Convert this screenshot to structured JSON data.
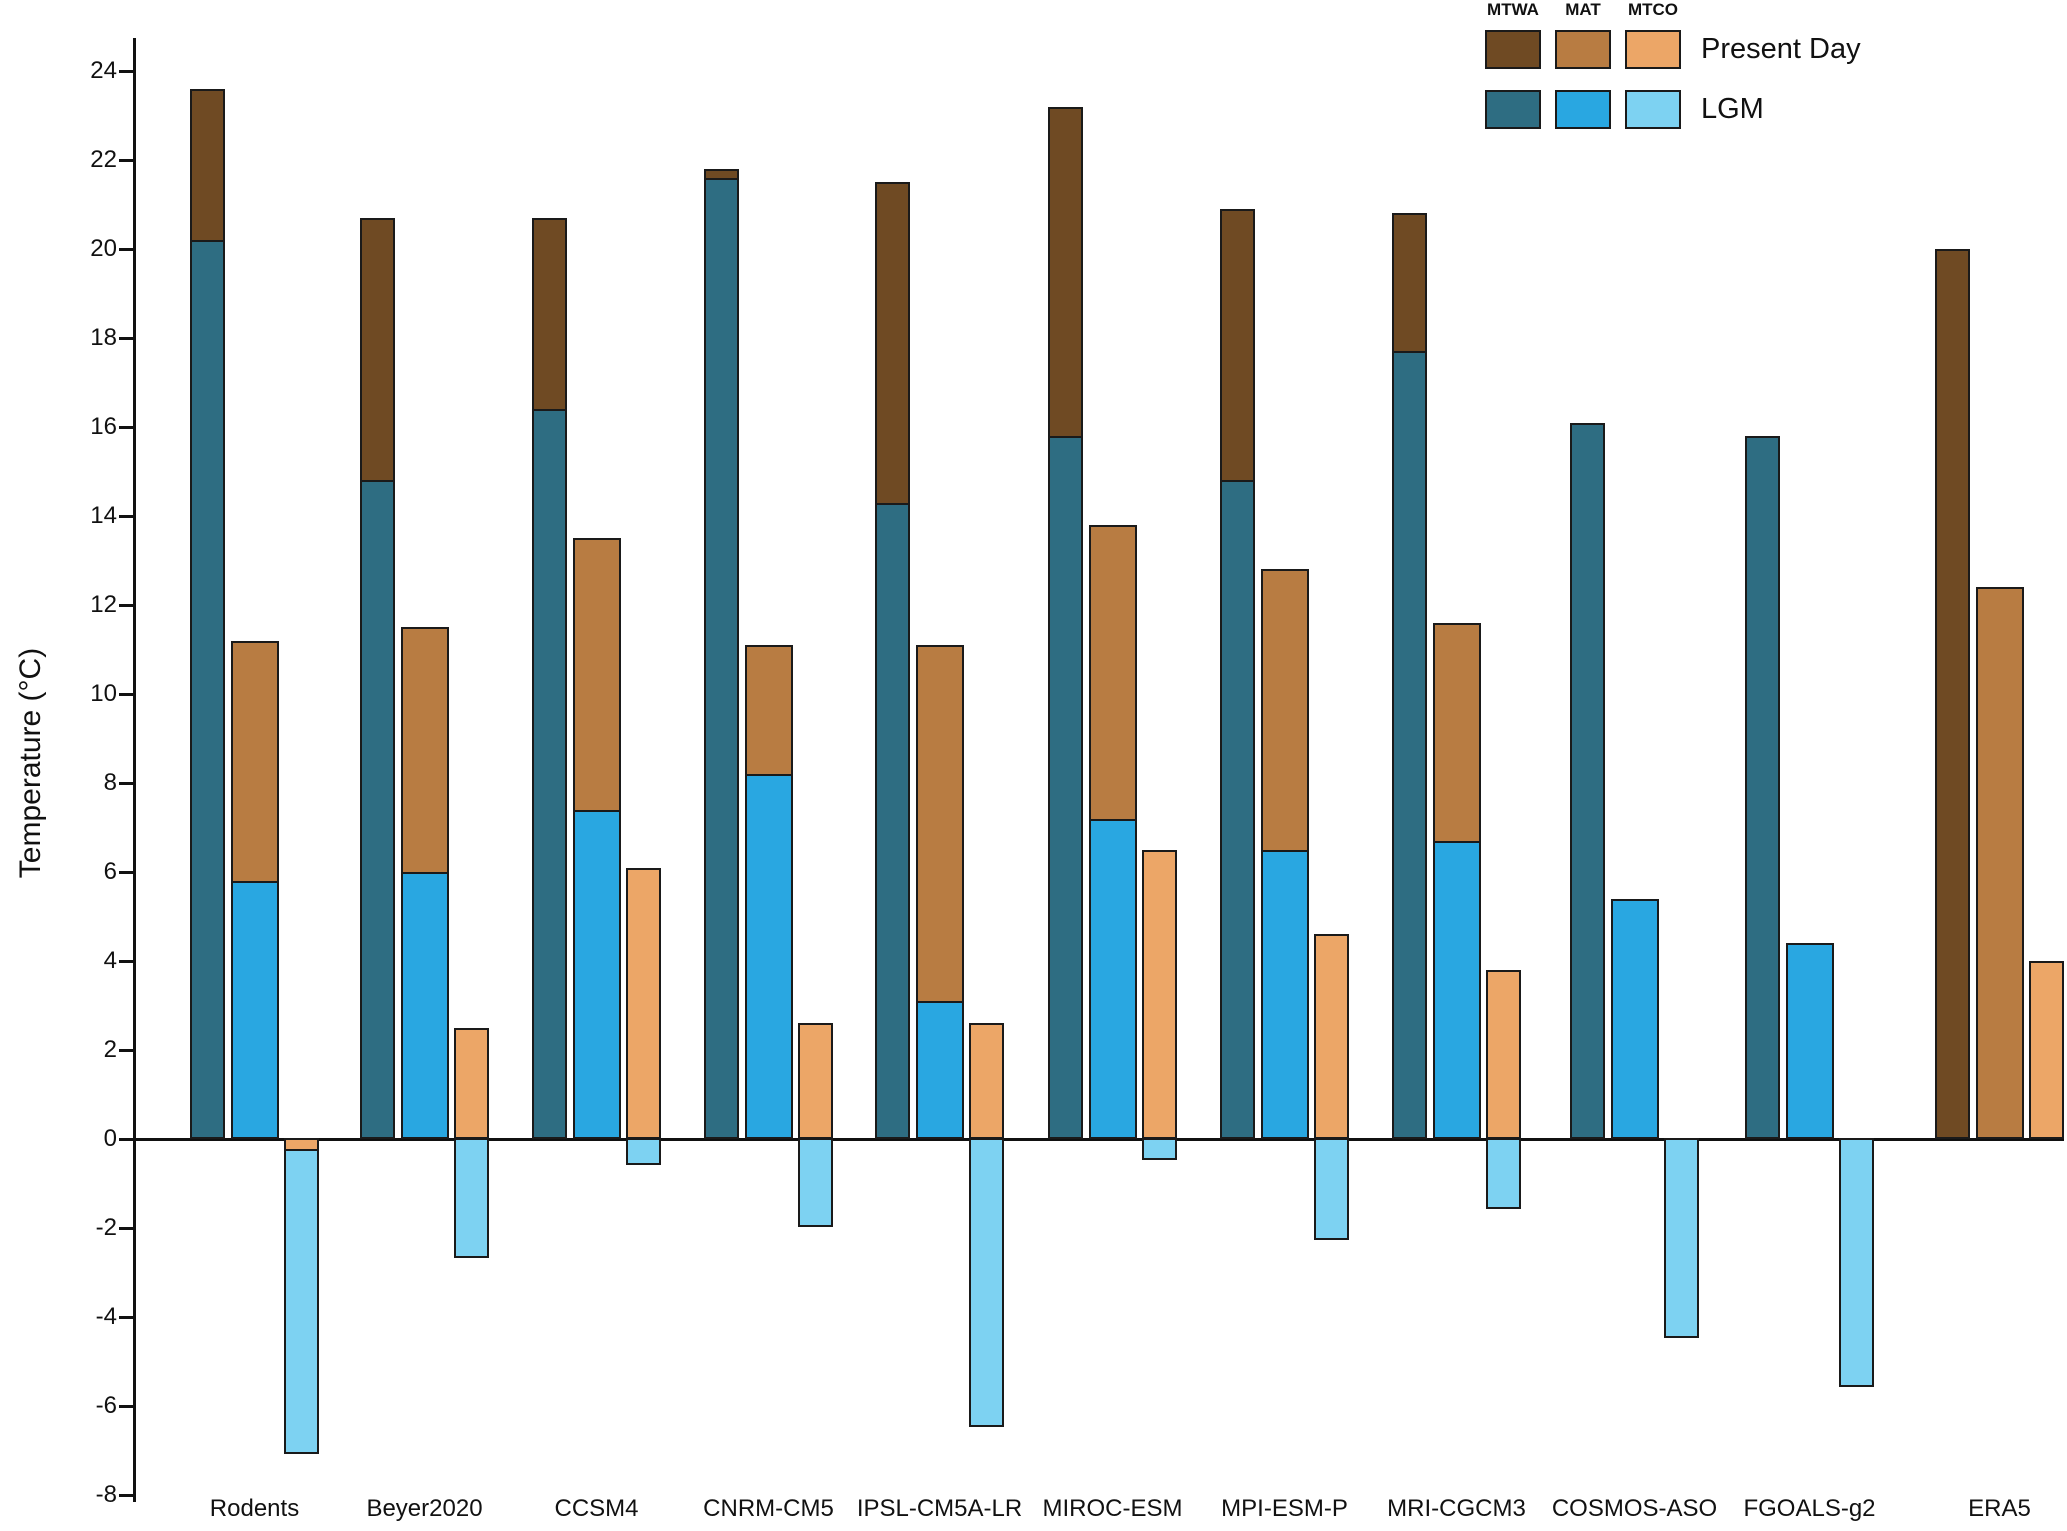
{
  "figure": {
    "y_axis_title": "Temperature (°C)",
    "legend": {
      "columns": [
        "MTWA",
        "MAT",
        "MTCO"
      ],
      "rows": [
        {
          "label": "Present Day",
          "colors": [
            "#6F4A23",
            "#B87C42",
            "#ECA667"
          ]
        },
        {
          "label": "LGM",
          "colors": [
            "#2E6D82",
            "#29A7E1",
            "#7DD2F2"
          ]
        }
      ]
    }
  },
  "chart_data": {
    "type": "bar",
    "title": "",
    "xlabel": "",
    "ylabel": "Temperature (°C)",
    "ylim": [
      -8,
      24
    ],
    "ytick_step": 2,
    "grid": false,
    "legend_position": "top-right",
    "bar_style": "overlaid (LGM bar drawn in front of Present Day bar for each metric)",
    "metrics": [
      "MTWA",
      "MAT",
      "MTCO"
    ],
    "scenarios": [
      "Present Day",
      "LGM"
    ],
    "colors": {
      "present_day": {
        "MTWA": "#6F4A23",
        "MAT": "#B87C42",
        "MTCO": "#ECA667"
      },
      "lgm": {
        "MTWA": "#2E6D82",
        "MAT": "#29A7E1",
        "MTCO": "#7DD2F2"
      },
      "outline": "#1A1A1A"
    },
    "categories": [
      "Rodents",
      "Beyer2020",
      "CCSM4",
      "CNRM-CM5",
      "IPSL-CM5A-LR",
      "MIROC-ESM",
      "MPI-ESM-P",
      "MRI-CGCM3",
      "COSMOS-ASO",
      "FGOALS-g2",
      "ERA5"
    ],
    "series": [
      {
        "name": "MTWA Present Day",
        "values": [
          23.6,
          20.7,
          20.7,
          21.8,
          21.5,
          23.2,
          20.9,
          20.8,
          null,
          null,
          20.0
        ]
      },
      {
        "name": "MTWA LGM",
        "values": [
          20.2,
          14.8,
          16.4,
          21.6,
          14.3,
          15.8,
          14.8,
          17.7,
          16.1,
          15.8,
          null
        ]
      },
      {
        "name": "MAT Present Day",
        "values": [
          11.2,
          11.5,
          13.5,
          11.1,
          11.1,
          13.8,
          12.8,
          11.6,
          null,
          null,
          12.4
        ]
      },
      {
        "name": "MAT LGM",
        "values": [
          5.8,
          6.0,
          7.4,
          8.2,
          3.1,
          7.2,
          6.5,
          6.7,
          5.4,
          4.4,
          null
        ]
      },
      {
        "name": "MTCO Present Day",
        "values": [
          -0.3,
          2.5,
          6.1,
          2.6,
          2.6,
          6.5,
          4.6,
          3.8,
          null,
          null,
          4.0
        ]
      },
      {
        "name": "MTCO LGM",
        "values": [
          -7.1,
          -2.7,
          -0.6,
          -2.0,
          -6.5,
          -0.5,
          -2.3,
          -1.6,
          -4.5,
          -5.6,
          null
        ]
      }
    ]
  }
}
